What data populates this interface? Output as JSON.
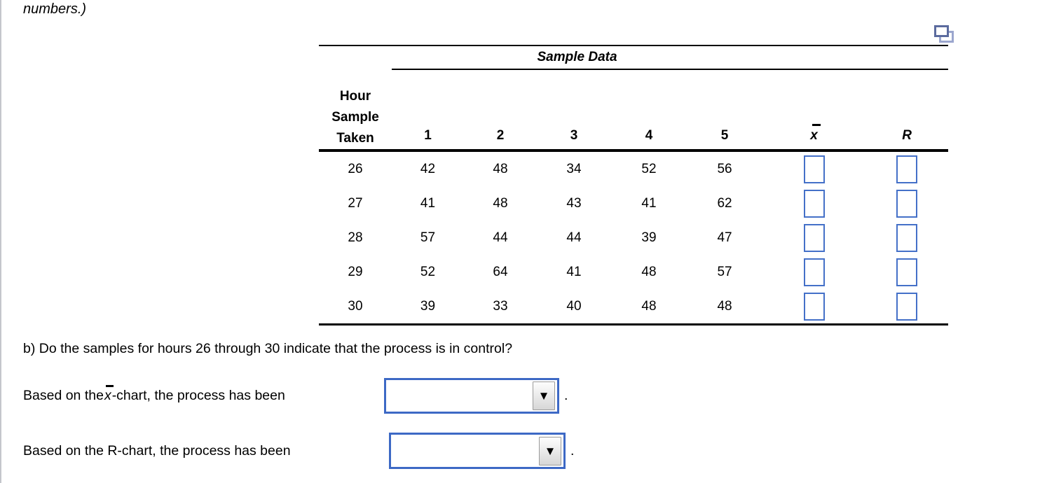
{
  "page": {
    "intro_text": "numbers.)",
    "prompt_b": "b) Do the samples for hours 26 through 30 indicate that the process is in control?"
  },
  "icons": {
    "caret_down": "▼",
    "copy_icon_name": "duplicate-question-icon"
  },
  "table": {
    "group_header": "Sample Data",
    "row_header_lines": [
      "Hour",
      "Sample",
      "Taken"
    ],
    "sample_columns": [
      "1",
      "2",
      "3",
      "4",
      "5"
    ],
    "xbar_symbol": "x",
    "range_symbol": "R",
    "rows": [
      {
        "hour": "26",
        "values": [
          "42",
          "48",
          "34",
          "52",
          "56"
        ],
        "xbar": "",
        "r": ""
      },
      {
        "hour": "27",
        "values": [
          "41",
          "48",
          "43",
          "41",
          "62"
        ],
        "xbar": "",
        "r": ""
      },
      {
        "hour": "28",
        "values": [
          "57",
          "44",
          "44",
          "39",
          "47"
        ],
        "xbar": "",
        "r": ""
      },
      {
        "hour": "29",
        "values": [
          "52",
          "64",
          "41",
          "48",
          "57"
        ],
        "xbar": "",
        "r": ""
      },
      {
        "hour": "30",
        "values": [
          "39",
          "33",
          "40",
          "48",
          "48"
        ],
        "xbar": "",
        "r": ""
      }
    ]
  },
  "question": {
    "xbar_line": {
      "prefix": "Based on the ",
      "symbol": "x",
      "suffix": "-chart, the process has been",
      "value": "",
      "period": "."
    },
    "r_line": {
      "text": "Based on the R-chart, the process has been",
      "value": "",
      "period": "."
    }
  },
  "colors": {
    "input_border": "#4470c8",
    "dropdown_border": "#3d69c5",
    "icon_front": "#5b6b9e",
    "icon_back": "#9ba6ce"
  }
}
